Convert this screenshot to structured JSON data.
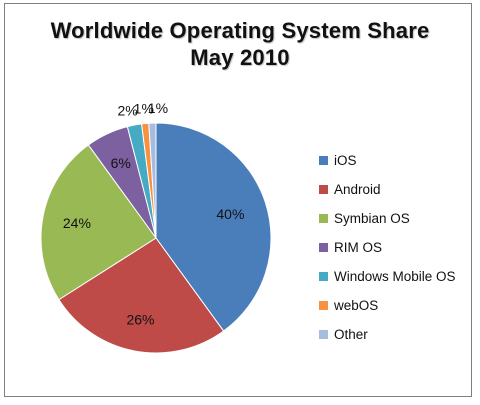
{
  "chart_data": {
    "type": "pie",
    "title": "Worldwide Operating System Share",
    "subtitle": "May 2010",
    "slices": [
      {
        "name": "iOS",
        "value": 40,
        "label": "40%",
        "color": "#4a7ebb"
      },
      {
        "name": "Android",
        "value": 26,
        "label": "26%",
        "color": "#be4b48"
      },
      {
        "name": "Symbian OS",
        "value": 24,
        "label": "24%",
        "color": "#98b954"
      },
      {
        "name": "RIM OS",
        "value": 6,
        "label": "6%",
        "color": "#7d60a0"
      },
      {
        "name": "Windows Mobile OS",
        "value": 2,
        "label": "2%",
        "color": "#46aac5"
      },
      {
        "name": "webOS",
        "value": 1,
        "label": "1%",
        "color": "#f69240"
      },
      {
        "name": "Other",
        "value": 1,
        "label": "1%",
        "color": "#a4bde0"
      }
    ],
    "start": "12 o'clock",
    "direction": "clockwise",
    "legend_position": "right"
  }
}
